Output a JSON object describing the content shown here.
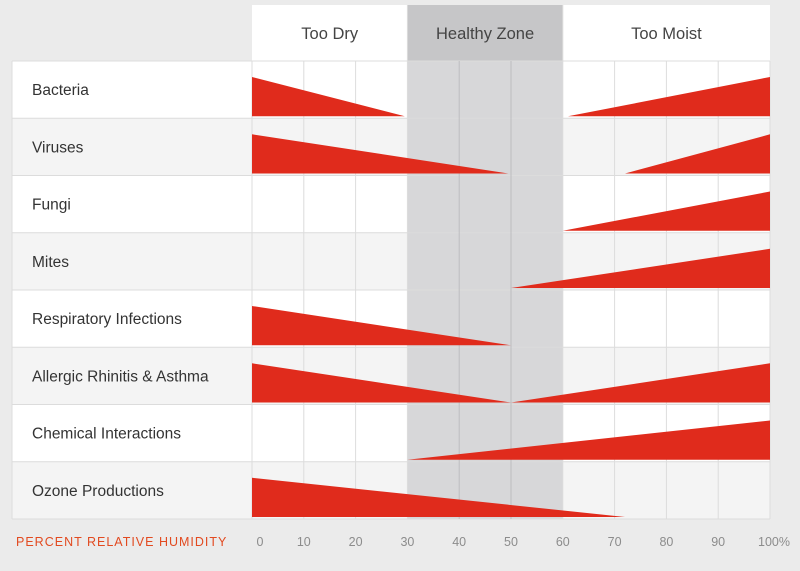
{
  "chart_data": {
    "type": "area",
    "title": "",
    "xlabel": "PERCENT RELATIVE HUMIDITY",
    "x_ticks": [
      "0",
      "10",
      "20",
      "30",
      "40",
      "50",
      "60",
      "70",
      "80",
      "90",
      "100%"
    ],
    "xlim": [
      0,
      100
    ],
    "zones": [
      {
        "name": "Too Dry",
        "range": [
          0,
          30
        ]
      },
      {
        "name": "Healthy Zone",
        "range": [
          30,
          60
        ]
      },
      {
        "name": "Too Moist",
        "range": [
          60,
          100
        ]
      }
    ],
    "categories": [
      "Bacteria",
      "Viruses",
      "Fungi",
      "Mites",
      "Respiratory Infections",
      "Allergic Rhinitis & Asthma",
      "Chemical Interactions",
      "Ozone Productions"
    ],
    "series": [
      {
        "name": "Bacteria",
        "segments": [
          {
            "x_start": 0,
            "x_end": 29.5,
            "level_start": 1.0,
            "level_end": 0
          },
          {
            "x_start": 61,
            "x_end": 100,
            "level_start": 0,
            "level_end": 1.0
          }
        ]
      },
      {
        "name": "Viruses",
        "segments": [
          {
            "x_start": 0,
            "x_end": 49.5,
            "level_start": 1.0,
            "level_end": 0
          },
          {
            "x_start": 72,
            "x_end": 100,
            "level_start": 0,
            "level_end": 1.0
          }
        ]
      },
      {
        "name": "Fungi",
        "segments": [
          {
            "x_start": 60,
            "x_end": 100,
            "level_start": 0,
            "level_end": 1.0
          }
        ]
      },
      {
        "name": "Mites",
        "segments": [
          {
            "x_start": 50,
            "x_end": 100,
            "level_start": 0,
            "level_end": 1.0
          }
        ]
      },
      {
        "name": "Respiratory Infections",
        "segments": [
          {
            "x_start": 0,
            "x_end": 50,
            "level_start": 1.0,
            "level_end": 0
          }
        ]
      },
      {
        "name": "Allergic Rhinitis & Asthma",
        "segments": [
          {
            "x_start": 0,
            "x_end": 50,
            "level_start": 1.0,
            "level_end": 0
          },
          {
            "x_start": 50,
            "x_end": 100,
            "level_start": 0,
            "level_end": 1.0
          }
        ]
      },
      {
        "name": "Chemical Interactions",
        "segments": [
          {
            "x_start": 30,
            "x_end": 100,
            "level_start": 0,
            "level_end": 1.0
          }
        ]
      },
      {
        "name": "Ozone Productions",
        "segments": [
          {
            "x_start": 0,
            "x_end": 72,
            "level_start": 1.0,
            "level_end": 0
          }
        ]
      }
    ],
    "colors": {
      "wedge": "#e02b1c",
      "axis_label": "#e24a20",
      "tick_label": "#8c8c8c",
      "row_text": "#333333",
      "zone_text": "#444444",
      "healthy_zone_fill": "#d7d7d9",
      "healthy_header_fill": "#c6c6c8",
      "row_light": "#ffffff",
      "row_alt": "#f4f4f4",
      "background": "#ebebeb",
      "grid": "#dcdcdc",
      "healthy_grid": "#bdbdc0"
    }
  }
}
